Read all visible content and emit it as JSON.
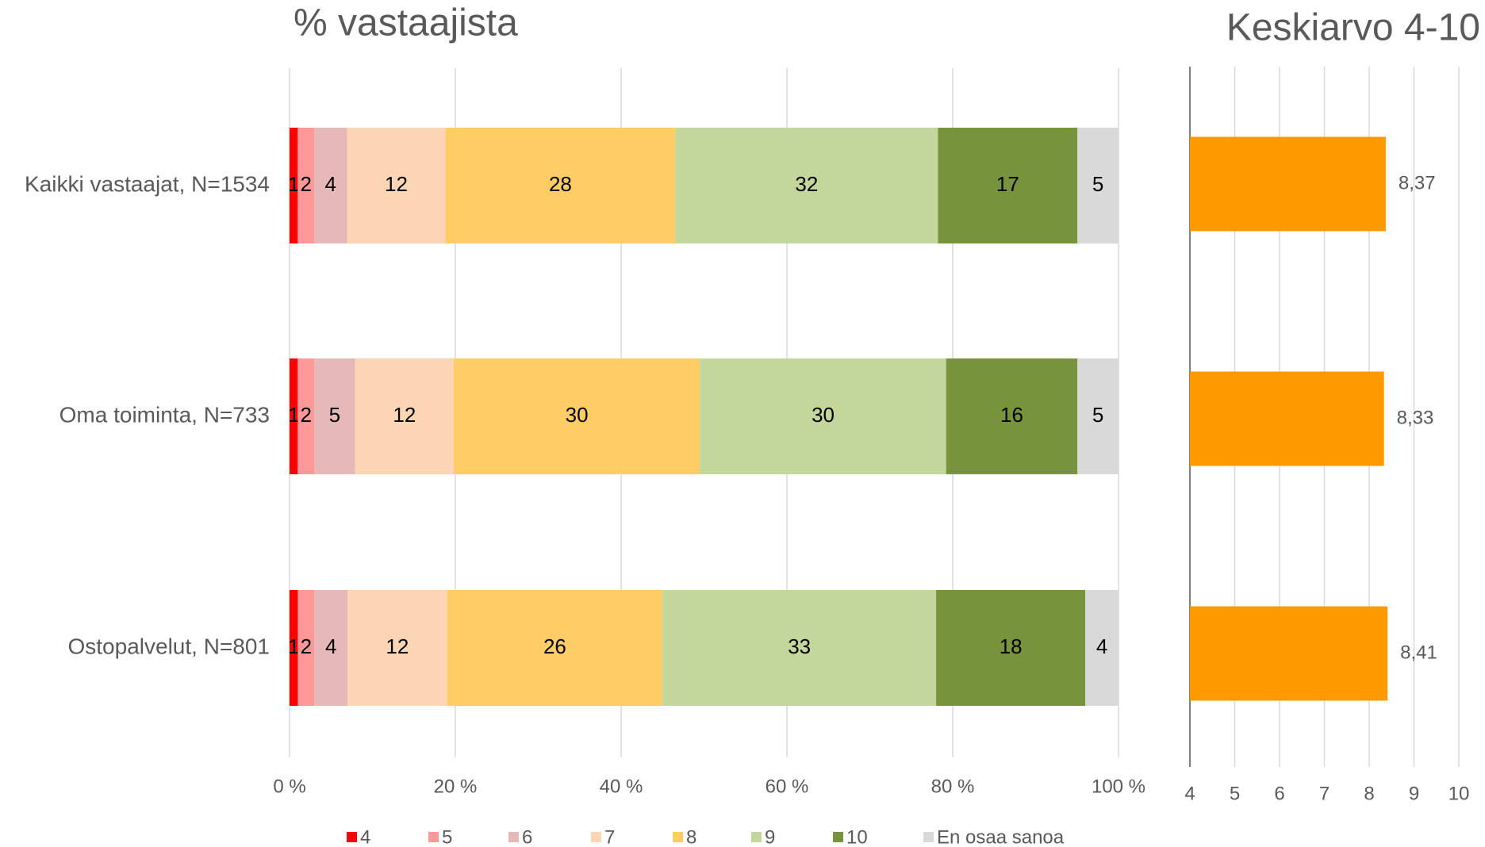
{
  "chart_data": [
    {
      "type": "stacked_bar",
      "stack": "percent",
      "orientation": "horizontal",
      "title": "% vastaajista",
      "categories": [
        "Kaikki vastaajat, N=1534",
        "Oma toiminta, N=733",
        "Ostopalvelut, N=801"
      ],
      "series": [
        {
          "name": "4",
          "color": "#ff0000",
          "values": [
            1,
            1,
            1
          ]
        },
        {
          "name": "5",
          "color": "#ff9999",
          "values": [
            2,
            2,
            2
          ]
        },
        {
          "name": "6",
          "color": "#e6b9b8",
          "values": [
            4,
            5,
            4
          ]
        },
        {
          "name": "7",
          "color": "#fcd5b5",
          "values": [
            12,
            12,
            12
          ]
        },
        {
          "name": "8",
          "color": "#ffcc66",
          "values": [
            28,
            30,
            26
          ]
        },
        {
          "name": "9",
          "color": "#c3d69b",
          "values": [
            32,
            30,
            33
          ]
        },
        {
          "name": "10",
          "color": "#77933c",
          "values": [
            17,
            16,
            18
          ]
        },
        {
          "name": "En osaa sanoa",
          "color": "#d9d9d9",
          "values": [
            5,
            5,
            4
          ]
        }
      ],
      "xlim": [
        0,
        100
      ],
      "xticks": [
        {
          "value": 0,
          "label": "0 %"
        },
        {
          "value": 20,
          "label": "20 %"
        },
        {
          "value": 40,
          "label": "40 %"
        },
        {
          "value": 60,
          "label": "60 %"
        },
        {
          "value": 80,
          "label": "80 %"
        },
        {
          "value": 100,
          "label": "100 %"
        }
      ],
      "grid": true,
      "legend": "bottom"
    },
    {
      "type": "bar",
      "orientation": "horizontal",
      "title": "Keskiarvo 4-10",
      "values": [
        8.37,
        8.33,
        8.41
      ],
      "value_labels": [
        "8,37",
        "8,33",
        "8,41"
      ],
      "color": "#ff9900",
      "xlim": [
        4,
        10
      ],
      "xticks": [
        4,
        5,
        6,
        7,
        8,
        9,
        10
      ],
      "grid": true
    }
  ]
}
